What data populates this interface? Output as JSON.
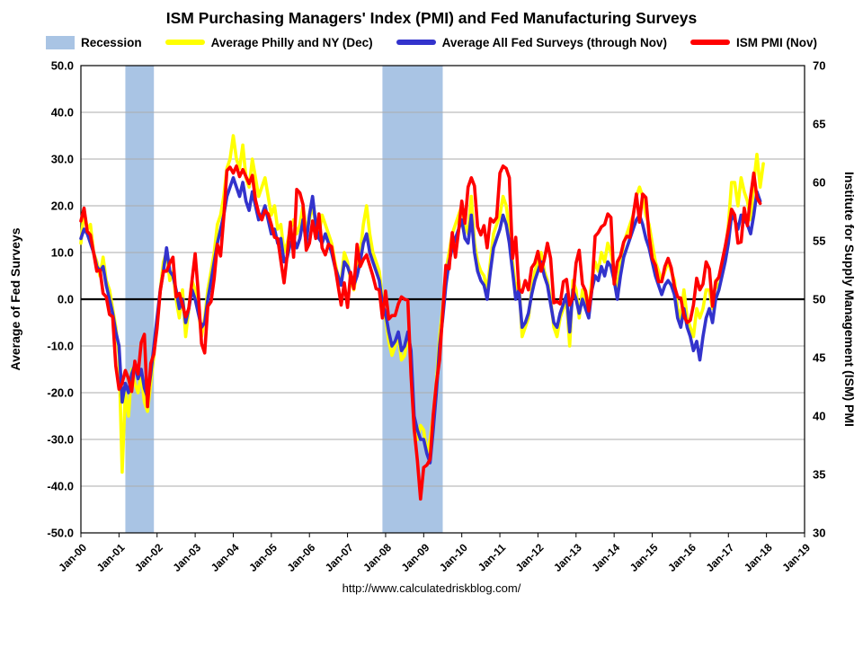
{
  "title": "ISM Purchasing Managers' Index (PMI) and Fed Manufacturing Surveys",
  "footer": {
    "url": "http://www.calculatedriskblog.com/"
  },
  "legend": [
    {
      "label": "Recession",
      "type": "box",
      "color": "#A9C4E4"
    },
    {
      "label": "Average Philly and NY (Dec)",
      "type": "line",
      "color": "#FFFF00"
    },
    {
      "label": "Average All Fed Surveys (through Nov)",
      "type": "line",
      "color": "#3333CC"
    },
    {
      "label": "ISM PMI (Nov)",
      "type": "line",
      "color": "#FF0000"
    }
  ],
  "chart_data": {
    "type": "line",
    "title": "ISM Purchasing Managers' Index (PMI) and Fed Manufacturing Surveys",
    "grid_color": "#ABABAB",
    "zero_line_color": "#000000",
    "recession_color": "#A9C4E4",
    "left_axis": {
      "label": "Average of Fed Surveys",
      "min": -50,
      "max": 50,
      "tick_step": 10,
      "tick_labels": [
        "50.0",
        "40.0",
        "30.0",
        "20.0",
        "10.0",
        "0.0",
        "-10.0",
        "-20.0",
        "-30.0",
        "-40.0",
        "-50.0"
      ]
    },
    "right_axis": {
      "label": "Institute for Supply Management (ISM) PMI",
      "min": 30,
      "max": 70,
      "tick_step": 5,
      "color": "#FF0000",
      "tick_labels": [
        "70",
        "65",
        "60",
        "55",
        "50",
        "45",
        "40",
        "35",
        "30"
      ]
    },
    "x_axis": {
      "start_month": "2000-01",
      "end_month": "2019-01",
      "tick_labels": [
        "Jan-00",
        "Jan-01",
        "Jan-02",
        "Jan-03",
        "Jan-04",
        "Jan-05",
        "Jan-06",
        "Jan-07",
        "Jan-08",
        "Jan-09",
        "Jan-10",
        "Jan-11",
        "Jan-12",
        "Jan-13",
        "Jan-14",
        "Jan-15",
        "Jan-16",
        "Jan-17",
        "Jan-18",
        "Jan-19"
      ]
    },
    "recessions": [
      {
        "start": "2001-03",
        "end": "2001-11"
      },
      {
        "start": "2007-12",
        "end": "2009-06"
      }
    ],
    "series": [
      {
        "id": "philly-ny-avg",
        "name": "Average Philly and NY (Dec)",
        "axis": "left",
        "color": "#FFFF00",
        "start_month": "2000-01",
        "values": [
          12,
          19,
          15,
          16,
          10,
          8,
          5,
          9,
          4,
          2,
          -2,
          -6,
          -12,
          -37,
          -20,
          -25,
          -15,
          -18,
          -20,
          -16,
          -22,
          -24,
          -18,
          -12,
          -5,
          2,
          8,
          10,
          4,
          6,
          0,
          -4,
          2,
          -8,
          -2,
          4,
          2,
          -2,
          -8,
          -4,
          2,
          6,
          10,
          16,
          18,
          22,
          28,
          30,
          35,
          30,
          28,
          33,
          26,
          24,
          30,
          26,
          22,
          24,
          26,
          22,
          18,
          20,
          15,
          16,
          10,
          12,
          15,
          17,
          14,
          16,
          20,
          15,
          17,
          20,
          16,
          14,
          18,
          16,
          14,
          12,
          8,
          5,
          4,
          10,
          8,
          4,
          2,
          6,
          10,
          16,
          20,
          14,
          10,
          8,
          6,
          0,
          -4,
          -9,
          -12,
          -10,
          -8,
          -13,
          -12,
          -8,
          -12,
          -28,
          -30,
          -27,
          -28,
          -33,
          -30,
          -25,
          -18,
          -8,
          -2,
          6,
          10,
          14,
          16,
          18,
          20,
          16,
          14,
          22,
          12,
          8,
          6,
          5,
          2,
          8,
          14,
          16,
          18,
          22,
          20,
          15,
          8,
          2,
          4,
          -8,
          -6,
          -4,
          2,
          6,
          8,
          10,
          6,
          4,
          0,
          -6,
          -8,
          -4,
          -2,
          0,
          -10,
          4,
          2,
          -4,
          2,
          0,
          -2,
          4,
          8,
          6,
          10,
          8,
          12,
          10,
          6,
          2,
          8,
          12,
          14,
          16,
          18,
          22,
          24,
          22,
          18,
          16,
          12,
          8,
          6,
          4,
          6,
          8,
          6,
          4,
          -2,
          -4,
          2,
          -4,
          -6,
          -8,
          -2,
          -4,
          -2,
          2,
          2,
          -2,
          4,
          2,
          6,
          10,
          16,
          25,
          25,
          20,
          26,
          23,
          21,
          17,
          25,
          31,
          24,
          29
        ]
      },
      {
        "id": "all-fed-avg",
        "name": "Average All Fed Surveys (through Nov)",
        "axis": "left",
        "color": "#3333CC",
        "start_month": "2000-01",
        "values": [
          13,
          15,
          14,
          12,
          10,
          7,
          6,
          7,
          3,
          0,
          -3,
          -7,
          -10,
          -22,
          -18,
          -20,
          -16,
          -14,
          -17,
          -15,
          -19,
          -21,
          -16,
          -10,
          -4,
          2,
          6,
          11,
          6,
          5,
          2,
          -2,
          0,
          -5,
          -2,
          2,
          0,
          -3,
          -6,
          -5,
          0,
          4,
          8,
          12,
          15,
          18,
          22,
          24,
          26,
          24,
          22,
          25,
          21,
          19,
          23,
          20,
          17,
          18,
          20,
          17,
          14,
          15,
          12,
          13,
          8,
          9,
          12,
          13,
          11,
          13,
          17,
          12,
          18,
          22,
          16,
          13,
          12,
          14,
          12,
          10,
          7,
          5,
          3,
          8,
          7,
          5,
          3,
          5,
          8,
          12,
          14,
          10,
          8,
          6,
          4,
          -1,
          -3,
          -7,
          -10,
          -9,
          -7,
          -11,
          -10,
          -7,
          -11,
          -25,
          -28,
          -30,
          -30,
          -33,
          -35,
          -28,
          -20,
          -10,
          -4,
          3,
          8,
          11,
          13,
          15,
          17,
          13,
          12,
          18,
          10,
          6,
          4,
          3,
          0,
          6,
          11,
          13,
          15,
          18,
          16,
          12,
          6,
          0,
          2,
          -6,
          -5,
          -3,
          1,
          4,
          6,
          8,
          5,
          3,
          -1,
          -5,
          -6,
          -3,
          -1,
          1,
          -7,
          2,
          0,
          -3,
          0,
          -2,
          -4,
          2,
          5,
          4,
          7,
          5,
          8,
          7,
          4,
          0,
          5,
          9,
          11,
          13,
          15,
          17,
          18,
          16,
          13,
          11,
          8,
          5,
          3,
          1,
          3,
          4,
          3,
          1,
          -4,
          -6,
          -2,
          -6,
          -8,
          -11,
          -9,
          -13,
          -8,
          -4,
          -2,
          -5,
          0,
          2,
          5,
          8,
          12,
          18,
          17,
          15,
          18,
          17,
          16,
          14,
          18,
          23,
          21
        ]
      },
      {
        "id": "ism-pmi",
        "name": "ISM PMI (Nov)",
        "axis": "right",
        "color": "#FF0000",
        "start_month": "2000-01",
        "values": [
          56.7,
          57.8,
          55.8,
          55.5,
          54.0,
          52.4,
          52.5,
          50.5,
          50.2,
          48.7,
          48.5,
          44.3,
          42.3,
          42.8,
          43.9,
          43.2,
          42.1,
          44.7,
          43.6,
          46.3,
          47.0,
          40.8,
          44.5,
          45.3,
          47.5,
          50.7,
          52.4,
          52.4,
          53.1,
          53.6,
          50.2,
          50.5,
          49.5,
          48.5,
          49.2,
          51.6,
          53.9,
          50.5,
          46.2,
          45.4,
          49.4,
          49.8,
          51.8,
          54.7,
          53.7,
          57.0,
          61.0,
          61.3,
          60.8,
          61.4,
          60.5,
          61.1,
          60.5,
          59.9,
          60.6,
          58.5,
          57.4,
          56.8,
          57.6,
          57.3,
          56.4,
          55.3,
          55.2,
          53.3,
          51.4,
          53.8,
          56.6,
          53.6,
          59.4,
          59.1,
          58.1,
          54.2,
          54.8,
          56.7,
          55.2,
          57.3,
          54.4,
          53.8,
          54.7,
          54.5,
          52.9,
          51.2,
          49.5,
          51.4,
          49.3,
          52.3,
          50.9,
          54.7,
          52.8,
          53.4,
          53.8,
          52.9,
          52.0,
          50.9,
          50.8,
          48.4,
          50.7,
          48.3,
          48.6,
          48.6,
          49.6,
          50.2,
          50.0,
          49.9,
          43.5,
          38.9,
          36.2,
          32.9,
          35.6,
          35.8,
          36.3,
          40.1,
          42.8,
          44.8,
          48.9,
          52.9,
          52.6,
          55.7,
          53.6,
          55.9,
          58.4,
          56.5,
          59.6,
          60.4,
          59.7,
          56.2,
          55.5,
          56.3,
          54.4,
          56.9,
          56.6,
          57.0,
          60.8,
          61.4,
          61.2,
          60.4,
          53.5,
          55.3,
          50.9,
          50.6,
          51.6,
          50.8,
          52.7,
          53.1,
          54.1,
          52.4,
          53.4,
          54.8,
          53.5,
          49.7,
          49.8,
          49.6,
          51.5,
          51.7,
          49.5,
          50.2,
          53.1,
          54.2,
          51.3,
          50.7,
          49.0,
          50.9,
          55.4,
          55.7,
          56.2,
          56.4,
          57.3,
          57.0,
          51.3,
          53.2,
          53.7,
          54.9,
          55.4,
          55.3,
          57.1,
          59.0,
          56.6,
          59.0,
          58.7,
          55.5,
          53.5,
          52.9,
          51.5,
          51.5,
          52.8,
          53.5,
          52.7,
          51.1,
          50.2,
          50.1,
          48.6,
          48.0,
          48.2,
          49.5,
          51.8,
          50.8,
          51.3,
          53.2,
          52.6,
          49.4,
          51.5,
          51.9,
          53.2,
          54.5,
          56.0,
          57.7,
          57.2,
          54.8,
          54.9,
          57.8,
          56.3,
          58.8,
          60.8,
          58.7,
          58.2
        ]
      }
    ]
  }
}
